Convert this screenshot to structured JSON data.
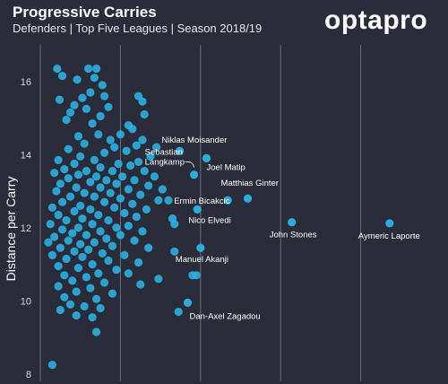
{
  "header": {
    "title": "Progressive Carries",
    "subtitle": "Defenders | Top Five Leagues | Season 2018/19",
    "logo_text": "optapro"
  },
  "colors": {
    "background": "#2a2c3a",
    "point": "#2ab4e6",
    "grid": "#6b6d78",
    "text": "#ffffff"
  },
  "chart_data": {
    "type": "scatter",
    "title": "Progressive Carries",
    "subtitle": "Defenders | Top Five Leagues | Season 2018/19",
    "xlabel": "",
    "ylabel": "Distance per Carry",
    "ylim": [
      7.8,
      17.0
    ],
    "xlim": [
      0,
      10
    ],
    "yticks": [
      8,
      10,
      12,
      14,
      16
    ],
    "grid": "vertical",
    "labeled_points": [
      {
        "label": "Niklas Moisander",
        "x": 3.48,
        "y": 14.1
      },
      {
        "label": "Joel Matip",
        "x": 4.15,
        "y": 13.9
      },
      {
        "label": "Sebastian Langkamp",
        "x": 3.84,
        "y": 13.45
      },
      {
        "label": "Matthias Ginter",
        "x": 5.18,
        "y": 12.8
      },
      {
        "label": "Ermin Bicakcic",
        "x": 4.68,
        "y": 12.75
      },
      {
        "label": "Nico Elvedi",
        "x": 3.92,
        "y": 12.5
      },
      {
        "label": "John Stones",
        "x": 6.28,
        "y": 12.15
      },
      {
        "label": "Aymeric Laporte",
        "x": 8.72,
        "y": 12.12
      },
      {
        "label": "Manuel Akanji",
        "x": 4.0,
        "y": 11.45
      },
      {
        "label": "Dan-Axel Zagadou",
        "x": 3.68,
        "y": 9.95
      }
    ],
    "points": [
      {
        "x": 0.42,
        "y": 16.35
      },
      {
        "x": 0.55,
        "y": 16.15
      },
      {
        "x": 1.2,
        "y": 16.35
      },
      {
        "x": 1.4,
        "y": 16.35
      },
      {
        "x": 1.35,
        "y": 16.1
      },
      {
        "x": 0.92,
        "y": 16.05
      },
      {
        "x": 1.55,
        "y": 15.9
      },
      {
        "x": 1.25,
        "y": 15.7
      },
      {
        "x": 0.48,
        "y": 15.5
      },
      {
        "x": 1.05,
        "y": 15.55
      },
      {
        "x": 1.6,
        "y": 15.6
      },
      {
        "x": 2.45,
        "y": 15.6
      },
      {
        "x": 2.55,
        "y": 15.45
      },
      {
        "x": 0.85,
        "y": 15.35
      },
      {
        "x": 1.7,
        "y": 15.3
      },
      {
        "x": 1.15,
        "y": 15.25
      },
      {
        "x": 0.75,
        "y": 15.15
      },
      {
        "x": 2.6,
        "y": 15.1
      },
      {
        "x": 1.5,
        "y": 15.05
      },
      {
        "x": 0.65,
        "y": 14.95
      },
      {
        "x": 1.3,
        "y": 14.85
      },
      {
        "x": 2.2,
        "y": 14.8
      },
      {
        "x": 2.3,
        "y": 14.7
      },
      {
        "x": 2.0,
        "y": 14.55
      },
      {
        "x": 1.45,
        "y": 14.55
      },
      {
        "x": 0.95,
        "y": 14.5
      },
      {
        "x": 1.75,
        "y": 14.4
      },
      {
        "x": 2.55,
        "y": 14.4
      },
      {
        "x": 1.1,
        "y": 14.3
      },
      {
        "x": 2.4,
        "y": 14.25
      },
      {
        "x": 1.85,
        "y": 14.2
      },
      {
        "x": 0.7,
        "y": 14.15
      },
      {
        "x": 2.15,
        "y": 14.1
      },
      {
        "x": 2.9,
        "y": 14.2
      },
      {
        "x": 1.6,
        "y": 14.05
      },
      {
        "x": 1.0,
        "y": 13.95
      },
      {
        "x": 2.75,
        "y": 13.95
      },
      {
        "x": 0.45,
        "y": 13.85
      },
      {
        "x": 1.35,
        "y": 13.85
      },
      {
        "x": 2.45,
        "y": 13.8
      },
      {
        "x": 0.85,
        "y": 13.75
      },
      {
        "x": 1.95,
        "y": 13.75
      },
      {
        "x": 2.25,
        "y": 13.7
      },
      {
        "x": 1.5,
        "y": 13.65
      },
      {
        "x": 0.6,
        "y": 13.6
      },
      {
        "x": 1.15,
        "y": 13.55
      },
      {
        "x": 1.8,
        "y": 13.55
      },
      {
        "x": 2.6,
        "y": 13.55
      },
      {
        "x": 0.35,
        "y": 13.5
      },
      {
        "x": 0.95,
        "y": 13.45
      },
      {
        "x": 1.4,
        "y": 13.4
      },
      {
        "x": 2.05,
        "y": 13.4
      },
      {
        "x": 2.85,
        "y": 13.4
      },
      {
        "x": 0.7,
        "y": 13.35
      },
      {
        "x": 1.65,
        "y": 13.3
      },
      {
        "x": 2.35,
        "y": 13.3
      },
      {
        "x": 1.25,
        "y": 13.25
      },
      {
        "x": 0.5,
        "y": 13.2
      },
      {
        "x": 1.9,
        "y": 13.2
      },
      {
        "x": 2.7,
        "y": 13.15
      },
      {
        "x": 0.9,
        "y": 13.1
      },
      {
        "x": 1.5,
        "y": 13.1
      },
      {
        "x": 2.2,
        "y": 13.05
      },
      {
        "x": 3.05,
        "y": 13.05
      },
      {
        "x": 0.4,
        "y": 13.0
      },
      {
        "x": 1.1,
        "y": 12.95
      },
      {
        "x": 1.75,
        "y": 12.95
      },
      {
        "x": 2.5,
        "y": 12.9
      },
      {
        "x": 0.75,
        "y": 12.85
      },
      {
        "x": 1.35,
        "y": 12.85
      },
      {
        "x": 2.0,
        "y": 12.8
      },
      {
        "x": 2.95,
        "y": 12.75
      },
      {
        "x": 0.55,
        "y": 12.7
      },
      {
        "x": 1.6,
        "y": 12.7
      },
      {
        "x": 2.3,
        "y": 12.65
      },
      {
        "x": 1.0,
        "y": 12.6
      },
      {
        "x": 3.2,
        "y": 12.75
      },
      {
        "x": 0.3,
        "y": 12.55
      },
      {
        "x": 1.85,
        "y": 12.55
      },
      {
        "x": 1.25,
        "y": 12.5
      },
      {
        "x": 2.65,
        "y": 12.5
      },
      {
        "x": 0.85,
        "y": 12.45
      },
      {
        "x": 2.1,
        "y": 12.4
      },
      {
        "x": 0.45,
        "y": 12.35
      },
      {
        "x": 1.45,
        "y": 12.35
      },
      {
        "x": 2.4,
        "y": 12.3
      },
      {
        "x": 1.05,
        "y": 12.25
      },
      {
        "x": 3.3,
        "y": 12.25
      },
      {
        "x": 0.65,
        "y": 12.2
      },
      {
        "x": 1.7,
        "y": 12.2
      },
      {
        "x": 0.25,
        "y": 12.1
      },
      {
        "x": 1.3,
        "y": 12.1
      },
      {
        "x": 2.2,
        "y": 12.05
      },
      {
        "x": 0.95,
        "y": 12.0
      },
      {
        "x": 1.9,
        "y": 12.0
      },
      {
        "x": 3.35,
        "y": 12.1
      },
      {
        "x": 0.55,
        "y": 11.95
      },
      {
        "x": 1.5,
        "y": 11.9
      },
      {
        "x": 2.55,
        "y": 11.9
      },
      {
        "x": 0.8,
        "y": 11.85
      },
      {
        "x": 1.15,
        "y": 11.8
      },
      {
        "x": 2.0,
        "y": 11.8
      },
      {
        "x": 0.35,
        "y": 11.75
      },
      {
        "x": 1.65,
        "y": 11.7
      },
      {
        "x": 0.7,
        "y": 11.65
      },
      {
        "x": 2.35,
        "y": 11.65
      },
      {
        "x": 1.35,
        "y": 11.6
      },
      {
        "x": 0.2,
        "y": 11.6
      },
      {
        "x": 1.0,
        "y": 11.55
      },
      {
        "x": 1.8,
        "y": 11.5
      },
      {
        "x": 0.5,
        "y": 11.45
      },
      {
        "x": 2.7,
        "y": 11.45
      },
      {
        "x": 1.2,
        "y": 11.4
      },
      {
        "x": 0.85,
        "y": 11.35
      },
      {
        "x": 1.55,
        "y": 11.3
      },
      {
        "x": 3.35,
        "y": 11.35
      },
      {
        "x": 0.3,
        "y": 11.25
      },
      {
        "x": 2.1,
        "y": 11.25
      },
      {
        "x": 1.05,
        "y": 11.2
      },
      {
        "x": 0.65,
        "y": 11.15
      },
      {
        "x": 1.7,
        "y": 11.1
      },
      {
        "x": 2.45,
        "y": 11.05
      },
      {
        "x": 1.3,
        "y": 11.0
      },
      {
        "x": 0.45,
        "y": 10.95
      },
      {
        "x": 0.95,
        "y": 10.9
      },
      {
        "x": 1.9,
        "y": 10.85
      },
      {
        "x": 1.45,
        "y": 10.75
      },
      {
        "x": 2.2,
        "y": 10.75
      },
      {
        "x": 0.6,
        "y": 10.7
      },
      {
        "x": 1.15,
        "y": 10.65
      },
      {
        "x": 2.95,
        "y": 10.6
      },
      {
        "x": 3.8,
        "y": 10.7
      },
      {
        "x": 3.9,
        "y": 10.7
      },
      {
        "x": 0.8,
        "y": 10.55
      },
      {
        "x": 1.6,
        "y": 10.5
      },
      {
        "x": 2.5,
        "y": 10.45
      },
      {
        "x": 0.45,
        "y": 10.4
      },
      {
        "x": 1.25,
        "y": 10.35
      },
      {
        "x": 0.9,
        "y": 10.25
      },
      {
        "x": 1.8,
        "y": 10.2
      },
      {
        "x": 0.6,
        "y": 10.1
      },
      {
        "x": 1.4,
        "y": 10.05
      },
      {
        "x": 0.75,
        "y": 9.9
      },
      {
        "x": 1.1,
        "y": 9.85
      },
      {
        "x": 0.5,
        "y": 9.75
      },
      {
        "x": 1.5,
        "y": 9.8
      },
      {
        "x": 0.9,
        "y": 9.6
      },
      {
        "x": 1.3,
        "y": 9.55
      },
      {
        "x": 3.45,
        "y": 9.7
      },
      {
        "x": 1.4,
        "y": 9.15
      },
      {
        "x": 0.3,
        "y": 8.25
      }
    ]
  }
}
